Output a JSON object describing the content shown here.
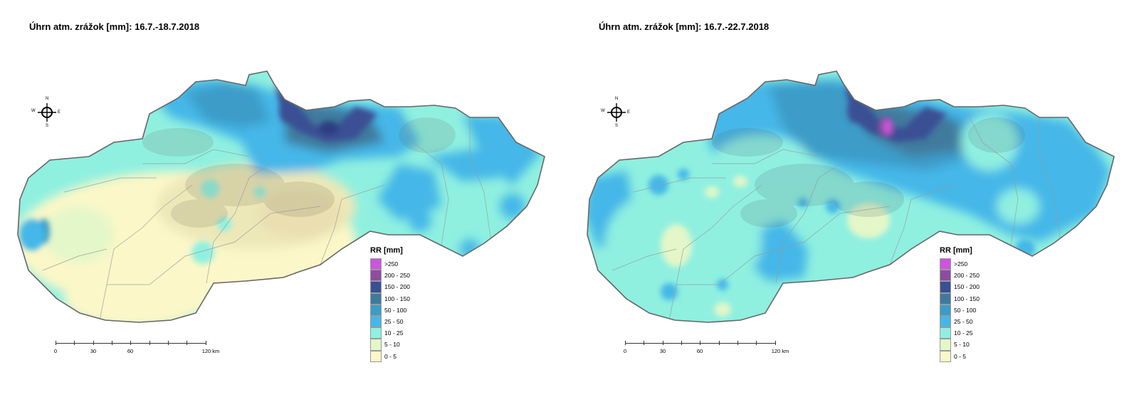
{
  "maps": [
    {
      "title": "Úhrn atm. zrážok [mm]: 16.7.-18.7.2018"
    },
    {
      "title": "Úhrn atm. zrážok [mm]: 16.7.-22.7.2018"
    }
  ],
  "legend": {
    "title": "RR [mm]",
    "classes": [
      {
        "label": ">250",
        "color": "#cc55dd"
      },
      {
        "label": "200 - 250",
        "color": "#8c4da0"
      },
      {
        "label": "150 - 200",
        "color": "#3a4f94"
      },
      {
        "label": "100 - 150",
        "color": "#3f7a9c"
      },
      {
        "label": "50 - 100",
        "color": "#3c9cc8"
      },
      {
        "label": "25 - 50",
        "color": "#44b7e8"
      },
      {
        "label": "10 - 25",
        "color": "#8ff0e0"
      },
      {
        "label": "5 - 10",
        "color": "#e3f7c8"
      },
      {
        "label": "0 - 5",
        "color": "#fbf7c8"
      }
    ]
  },
  "scale_bar": {
    "labels": [
      "0",
      "30",
      "60",
      "120 km"
    ],
    "values_km": [
      0,
      30,
      60,
      120
    ]
  },
  "compass": {
    "n": "N",
    "s": "S",
    "e": "E",
    "w": "W"
  }
}
